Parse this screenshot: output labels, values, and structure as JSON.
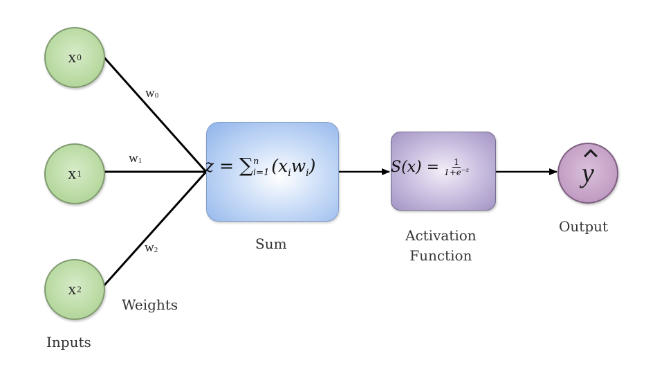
{
  "inputs": [
    {
      "symbol": "x",
      "index": "0"
    },
    {
      "symbol": "x",
      "index": "1"
    },
    {
      "symbol": "x",
      "index": "2"
    }
  ],
  "weights": [
    {
      "symbol": "w",
      "index": "0"
    },
    {
      "symbol": "w",
      "index": "1"
    },
    {
      "symbol": "w",
      "index": "2"
    }
  ],
  "sum_formula": {
    "lhs": "z = ",
    "sigma": "∑",
    "upper": "n",
    "lower": "i=1",
    "body": "(x",
    "sub_i": "i",
    "mid": "w",
    "sub_i2": "i",
    "close": ")"
  },
  "activation_formula": {
    "lhs": "S(x) = ",
    "numerator": "1",
    "denominator_base": "1+e",
    "denominator_exp": "−z"
  },
  "output": {
    "symbol": "y"
  },
  "labels": {
    "inputs": "Inputs",
    "weights": "Weights",
    "sum": "Sum",
    "activation_line1": "Activation",
    "activation_line2": "Function",
    "output": "Output"
  },
  "colors": {
    "input_node": "#bcdca6",
    "sum_box": "#8fb3ea",
    "activation_box": "#a394c4",
    "output_node": "#c5a2c7",
    "wire": "#000000"
  }
}
